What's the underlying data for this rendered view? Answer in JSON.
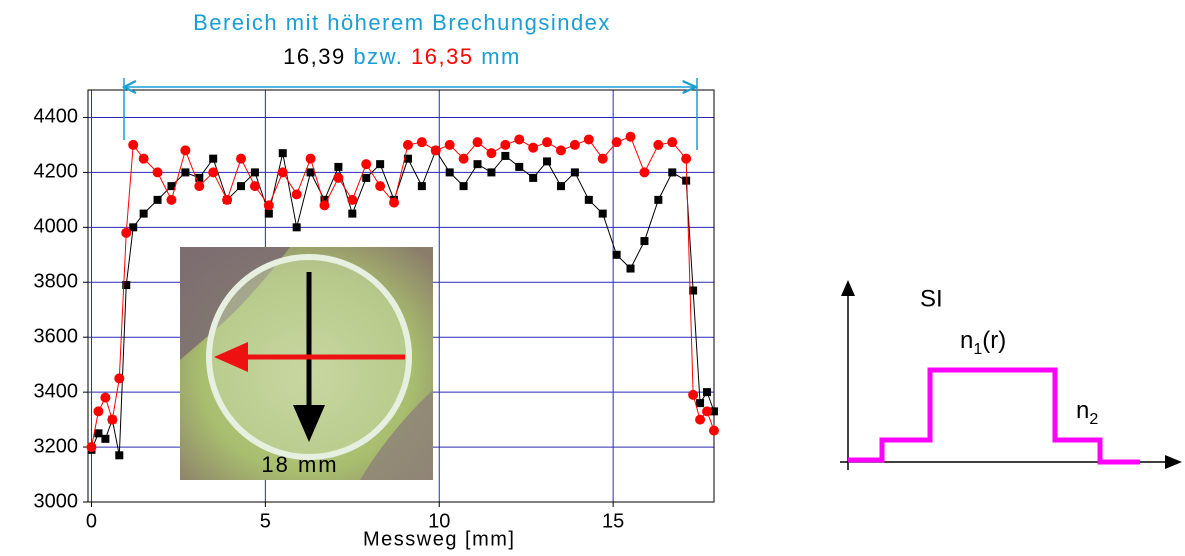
{
  "chart_data": {
    "type": "scatter-line",
    "x_label": "Messweg [mm]",
    "annotations": {
      "title": "Bereich mit höherem Brechungsindex",
      "length_1": "16,39",
      "conjunction": "bzw.",
      "length_2": "16,35",
      "unit": "mm",
      "photo_label": "18 mm"
    },
    "x": [
      0,
      0.2,
      0.4,
      0.6,
      0.8,
      1.0,
      1.2,
      1.5,
      1.9,
      2.3,
      2.7,
      3.1,
      3.5,
      3.9,
      4.3,
      4.7,
      5.1,
      5.5,
      5.9,
      6.3,
      6.7,
      7.1,
      7.5,
      7.9,
      8.3,
      8.7,
      9.1,
      9.5,
      9.9,
      10.3,
      10.7,
      11.1,
      11.5,
      11.9,
      12.3,
      12.7,
      13.1,
      13.5,
      13.9,
      14.3,
      14.7,
      15.1,
      15.5,
      15.9,
      16.3,
      16.7,
      17.1,
      17.3,
      17.5,
      17.7,
      17.9
    ],
    "series": [
      {
        "color": "#000000",
        "marker": "square",
        "values": [
          3190,
          3250,
          3230,
          3300,
          3170,
          3790,
          4000,
          4050,
          4100,
          4150,
          4200,
          4180,
          4250,
          4100,
          4150,
          4200,
          4050,
          4270,
          4000,
          4200,
          4100,
          4220,
          4050,
          4180,
          4230,
          4100,
          4250,
          4150,
          4280,
          4200,
          4150,
          4230,
          4200,
          4260,
          4220,
          4180,
          4240,
          4150,
          4200,
          4100,
          4050,
          3900,
          3850,
          3950,
          4100,
          4200,
          4170,
          3770,
          3360,
          3400,
          3330
        ]
      },
      {
        "color": "#ff0000",
        "marker": "circle",
        "values": [
          3200,
          3330,
          3380,
          3300,
          3450,
          3980,
          4300,
          4250,
          4200,
          4100,
          4280,
          4150,
          4200,
          4100,
          4250,
          4150,
          4080,
          4200,
          4120,
          4250,
          4080,
          4180,
          4100,
          4230,
          4150,
          4090,
          4300,
          4310,
          4280,
          4300,
          4250,
          4310,
          4270,
          4300,
          4320,
          4290,
          4310,
          4280,
          4300,
          4320,
          4250,
          4310,
          4330,
          4200,
          4300,
          4310,
          4250,
          3390,
          3300,
          3330,
          3260
        ]
      }
    ],
    "xlim": [
      -0.1,
      17.9
    ],
    "xticks": [
      0,
      5,
      10,
      15
    ],
    "ylim": [
      3000,
      4500
    ],
    "yticks": [
      3000,
      3200,
      3400,
      3600,
      3800,
      4000,
      4200,
      4400
    ],
    "grid": true,
    "grid_color": "#2a2ab8"
  },
  "diagram": {
    "axis_label": "SI",
    "n1_base": "n",
    "n1_sub": "1",
    "n1_suffix": "(r)",
    "n2_base": "n",
    "n2_sub": "2",
    "color": "#ff00ff"
  }
}
